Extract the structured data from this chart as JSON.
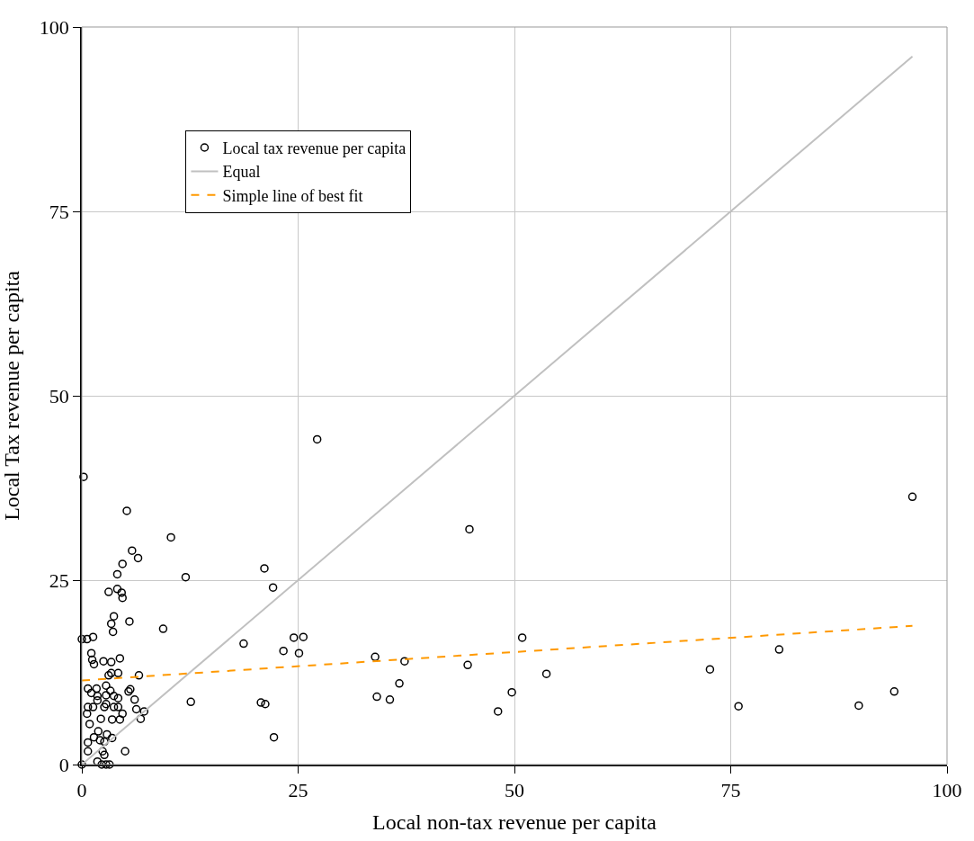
{
  "chart_data": {
    "type": "scatter",
    "xlabel": "Local non-tax revenue per capita",
    "ylabel": "Local Tax revenue per capita",
    "xlim": [
      0,
      100
    ],
    "ylim": [
      0,
      100
    ],
    "xticks": [
      0,
      25,
      50,
      75,
      100
    ],
    "yticks": [
      0,
      25,
      50,
      75,
      100
    ],
    "grid": true,
    "legend": "top left",
    "marker": "circle",
    "series": [
      {
        "name": "Local tax revenue per capita",
        "color": "#000000",
        "x": [
          0,
          0.2,
          5.2,
          10.3,
          5.8,
          6.5,
          4.7,
          4.1,
          12.0,
          3.1,
          4.1,
          4.6,
          4.7,
          3.7,
          3.4,
          3.6,
          5.5,
          9.4,
          0,
          0.6,
          1.3,
          1.1,
          1.2,
          1.4,
          2.5,
          3.4,
          4.4,
          3.4,
          4.2,
          6.6,
          3.1,
          0.7,
          1.7,
          2.8,
          3.3,
          1.1,
          1.8,
          5.6,
          5.4,
          2.8,
          3.7,
          4.2,
          6.1,
          1.8,
          0.7,
          1.3,
          2.8,
          3.7,
          4.2,
          0.6,
          2.6,
          4.7,
          6.3,
          7.2,
          6.8,
          2.2,
          3.5,
          4.4,
          0.9,
          1.9,
          1.4,
          2.9,
          3.5,
          2.1,
          2.6,
          0.7,
          0.7,
          2.4,
          2.6,
          5.0,
          1.8,
          2.3,
          2.8,
          3.2,
          12.6,
          27.2,
          21.1,
          22.1,
          44.8,
          18.7,
          24.5,
          25.6,
          23.3,
          25.1,
          33.9,
          37.3,
          44.6,
          50.9,
          53.7,
          20.7,
          21.2,
          22.2,
          34.1,
          35.6,
          36.7,
          49.7,
          48.1,
          96.0,
          72.6,
          80.6,
          75.9,
          89.8,
          93.9
        ],
        "values": [
          0,
          39,
          34.4,
          30.8,
          29.0,
          28.0,
          27.2,
          25.8,
          25.4,
          23.4,
          23.8,
          23.3,
          22.6,
          20.1,
          19.1,
          18.0,
          19.4,
          18.4,
          17.0,
          17.0,
          17.3,
          15.1,
          14.2,
          13.6,
          14.0,
          13.9,
          14.4,
          12.4,
          12.4,
          12.1,
          12.1,
          10.3,
          10.3,
          10.7,
          10.0,
          9.7,
          9.3,
          10.2,
          9.9,
          9.4,
          9.3,
          9.0,
          8.8,
          8.7,
          7.8,
          7.8,
          8.2,
          7.8,
          7.8,
          6.9,
          7.8,
          6.9,
          7.5,
          7.2,
          6.2,
          6.2,
          6.1,
          6.1,
          5.5,
          4.5,
          3.7,
          4.1,
          3.6,
          3.3,
          3.1,
          3.0,
          1.8,
          1.8,
          1.3,
          1.8,
          0.4,
          0,
          0,
          0,
          8.5,
          44.1,
          26.6,
          24.0,
          31.9,
          16.4,
          17.2,
          17.3,
          15.4,
          15.1,
          14.6,
          14.0,
          13.5,
          17.2,
          12.3,
          8.4,
          8.2,
          3.7,
          9.2,
          8.8,
          11.0,
          9.8,
          7.2,
          36.3,
          12.9,
          15.6,
          7.9,
          8.0,
          9.9
        ]
      },
      {
        "name": "Equal",
        "type": "line",
        "color": "#c0c0c0",
        "line_style": "solid",
        "marker": "none",
        "x": [
          0,
          96
        ],
        "values": [
          0,
          96
        ]
      },
      {
        "name": "Simple line of best fit",
        "type": "line",
        "color": "#ff9900",
        "line_style": "dashed",
        "marker": "none",
        "x": [
          0,
          96
        ],
        "values": [
          11.4,
          18.8
        ]
      }
    ]
  }
}
